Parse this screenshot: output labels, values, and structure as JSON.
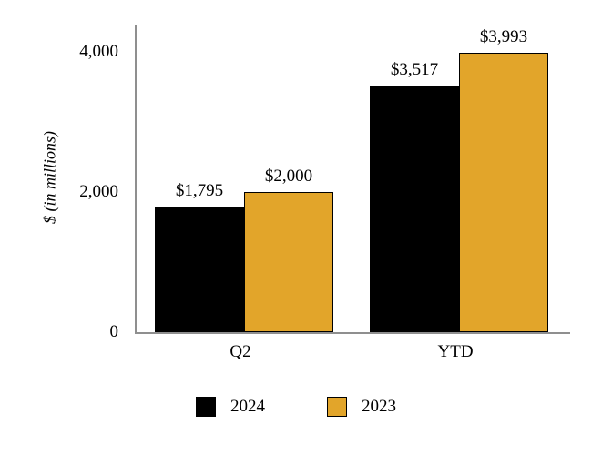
{
  "chart_data": {
    "type": "bar",
    "title": "",
    "ylabel": "$ (in millions)",
    "xlabel": "",
    "categories": [
      "Q2",
      "YTD"
    ],
    "series": [
      {
        "name": "2024",
        "color": "#000000",
        "values": [
          1795,
          3517
        ],
        "labels": [
          "$1,795",
          "$3,517"
        ]
      },
      {
        "name": "2023",
        "color": "#E2A52A",
        "values": [
          2000,
          3993
        ],
        "labels": [
          "$2,000",
          "$3,993"
        ]
      }
    ],
    "yticks": [
      {
        "value": 0,
        "label": "0"
      },
      {
        "value": 2000,
        "label": "2,000"
      },
      {
        "value": 4000,
        "label": "4,000"
      }
    ],
    "ylim": [
      0,
      4000
    ],
    "grid": false,
    "legend_position": "bottom"
  }
}
